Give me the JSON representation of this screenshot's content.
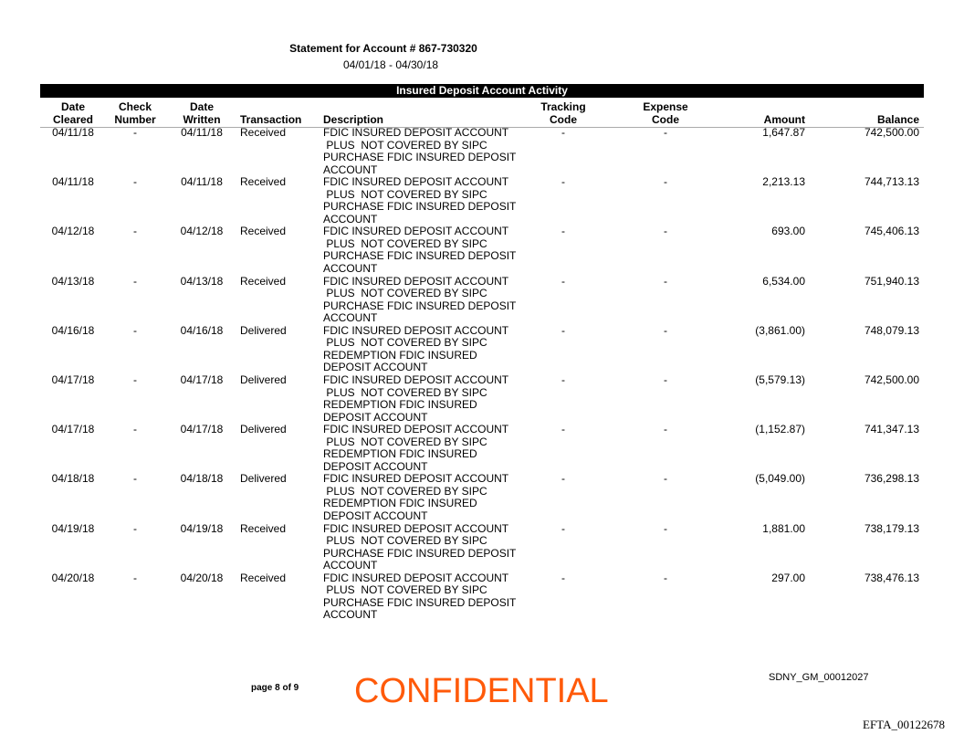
{
  "header": {
    "title": "Statement for Account # 867-730320",
    "period": "04/01/18 - 04/30/18"
  },
  "section_title": "Insured Deposit Account Activity",
  "columns": {
    "date_cleared": [
      "Date",
      "Cleared"
    ],
    "check_number": [
      "Check",
      "Number"
    ],
    "date_written": [
      "Date",
      "Written"
    ],
    "transaction": "Transaction",
    "description": "Description",
    "tracking_code": [
      "Tracking",
      "Code"
    ],
    "expense_code": [
      "Expense",
      "Code"
    ],
    "amount": "Amount",
    "balance": "Balance"
  },
  "rows": [
    {
      "date_cleared": "04/11/18",
      "check": "-",
      "date_written": "04/11/18",
      "transaction": "Received",
      "description": [
        "FDIC INSURED DEPOSIT ACCOUNT",
        " PLUS  NOT COVERED BY SIPC",
        "PURCHASE FDIC INSURED DEPOSIT",
        "ACCOUNT"
      ],
      "tracking": "-",
      "expense": "-",
      "amount": "1,647.87",
      "balance": "742,500.00"
    },
    {
      "date_cleared": "04/11/18",
      "check": "-",
      "date_written": "04/11/18",
      "transaction": "Received",
      "description": [
        "FDIC INSURED DEPOSIT ACCOUNT",
        " PLUS  NOT COVERED BY SIPC",
        "PURCHASE FDIC INSURED DEPOSIT",
        "ACCOUNT"
      ],
      "tracking": "-",
      "expense": "-",
      "amount": "2,213.13",
      "balance": "744,713.13"
    },
    {
      "date_cleared": "04/12/18",
      "check": "-",
      "date_written": "04/12/18",
      "transaction": "Received",
      "description": [
        "FDIC INSURED DEPOSIT ACCOUNT",
        " PLUS  NOT COVERED BY SIPC",
        "PURCHASE FDIC INSURED DEPOSIT",
        "ACCOUNT"
      ],
      "tracking": "-",
      "expense": "-",
      "amount": "693.00",
      "balance": "745,406.13"
    },
    {
      "date_cleared": "04/13/18",
      "check": "-",
      "date_written": "04/13/18",
      "transaction": "Received",
      "description": [
        "FDIC INSURED DEPOSIT ACCOUNT",
        " PLUS  NOT COVERED BY SIPC",
        "PURCHASE FDIC INSURED DEPOSIT",
        "ACCOUNT"
      ],
      "tracking": "-",
      "expense": "-",
      "amount": "6,534.00",
      "balance": "751,940.13"
    },
    {
      "date_cleared": "04/16/18",
      "check": "-",
      "date_written": "04/16/18",
      "transaction": "Delivered",
      "description": [
        "FDIC INSURED DEPOSIT ACCOUNT",
        " PLUS  NOT COVERED BY SIPC",
        "REDEMPTION FDIC INSURED",
        "DEPOSIT ACCOUNT"
      ],
      "tracking": "-",
      "expense": "-",
      "amount": "(3,861.00)",
      "balance": "748,079.13"
    },
    {
      "date_cleared": "04/17/18",
      "check": "-",
      "date_written": "04/17/18",
      "transaction": "Delivered",
      "description": [
        "FDIC INSURED DEPOSIT ACCOUNT",
        " PLUS  NOT COVERED BY SIPC",
        "REDEMPTION FDIC INSURED",
        "DEPOSIT ACCOUNT"
      ],
      "tracking": "-",
      "expense": "-",
      "amount": "(5,579.13)",
      "balance": "742,500.00"
    },
    {
      "date_cleared": "04/17/18",
      "check": "-",
      "date_written": "04/17/18",
      "transaction": "Delivered",
      "description": [
        "FDIC INSURED DEPOSIT ACCOUNT",
        " PLUS  NOT COVERED BY SIPC",
        "REDEMPTION FDIC INSURED",
        "DEPOSIT ACCOUNT"
      ],
      "tracking": "-",
      "expense": "-",
      "amount": "(1,152.87)",
      "balance": "741,347.13"
    },
    {
      "date_cleared": "04/18/18",
      "check": "-",
      "date_written": "04/18/18",
      "transaction": "Delivered",
      "description": [
        "FDIC INSURED DEPOSIT ACCOUNT",
        " PLUS  NOT COVERED BY SIPC",
        "REDEMPTION FDIC INSURED",
        "DEPOSIT ACCOUNT"
      ],
      "tracking": "-",
      "expense": "-",
      "amount": "(5,049.00)",
      "balance": "736,298.13"
    },
    {
      "date_cleared": "04/19/18",
      "check": "-",
      "date_written": "04/19/18",
      "transaction": "Received",
      "description": [
        "FDIC INSURED DEPOSIT ACCOUNT",
        " PLUS  NOT COVERED BY SIPC",
        "PURCHASE FDIC INSURED DEPOSIT",
        "ACCOUNT"
      ],
      "tracking": "-",
      "expense": "-",
      "amount": "1,881.00",
      "balance": "738,179.13"
    },
    {
      "date_cleared": "04/20/18",
      "check": "-",
      "date_written": "04/20/18",
      "transaction": "Received",
      "description": [
        "FDIC INSURED DEPOSIT ACCOUNT",
        " PLUS  NOT COVERED BY SIPC",
        "PURCHASE FDIC INSURED DEPOSIT",
        "ACCOUNT"
      ],
      "tracking": "-",
      "expense": "-",
      "amount": "297.00",
      "balance": "738,476.13"
    }
  ],
  "footer": {
    "page": "page 8 of 9",
    "confidential": "CONFIDENTIAL",
    "bates": "SDNY_GM_00012027",
    "efta": "EFTA_00122678"
  },
  "colors": {
    "confidential": "#ff5a0a",
    "section_bar": "#000000"
  }
}
